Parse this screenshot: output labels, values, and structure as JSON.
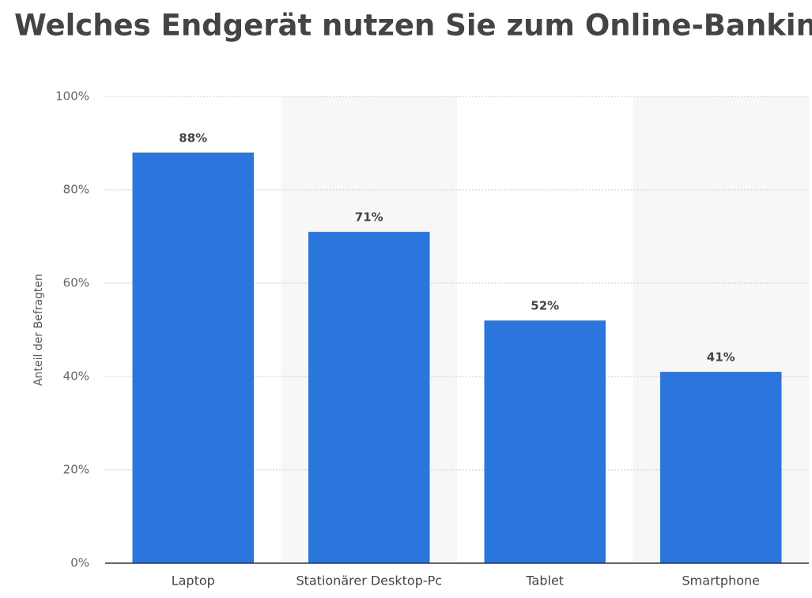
{
  "chart_data": {
    "type": "bar",
    "title": "Welches Endgerät nutzen Sie zum Online-Banking?",
    "y_label": "Anteil der Befragten",
    "categories": [
      "Laptop",
      "Stationärer Desktop-Pc",
      "Tablet",
      "Smartphone"
    ],
    "values": [
      88,
      71,
      52,
      41
    ],
    "value_labels": [
      "88%",
      "71%",
      "52%",
      "41%"
    ],
    "color": "#2a76dd",
    "ylim": [
      0,
      100
    ],
    "yticks": [
      {
        "value": 0,
        "label": "0%"
      },
      {
        "value": 20,
        "label": "20%"
      },
      {
        "value": 40,
        "label": "40%"
      },
      {
        "value": 60,
        "label": "60%"
      },
      {
        "value": 80,
        "label": "80%"
      },
      {
        "value": 100,
        "label": "100%"
      }
    ],
    "grid": true,
    "alternating_bands": true
  }
}
